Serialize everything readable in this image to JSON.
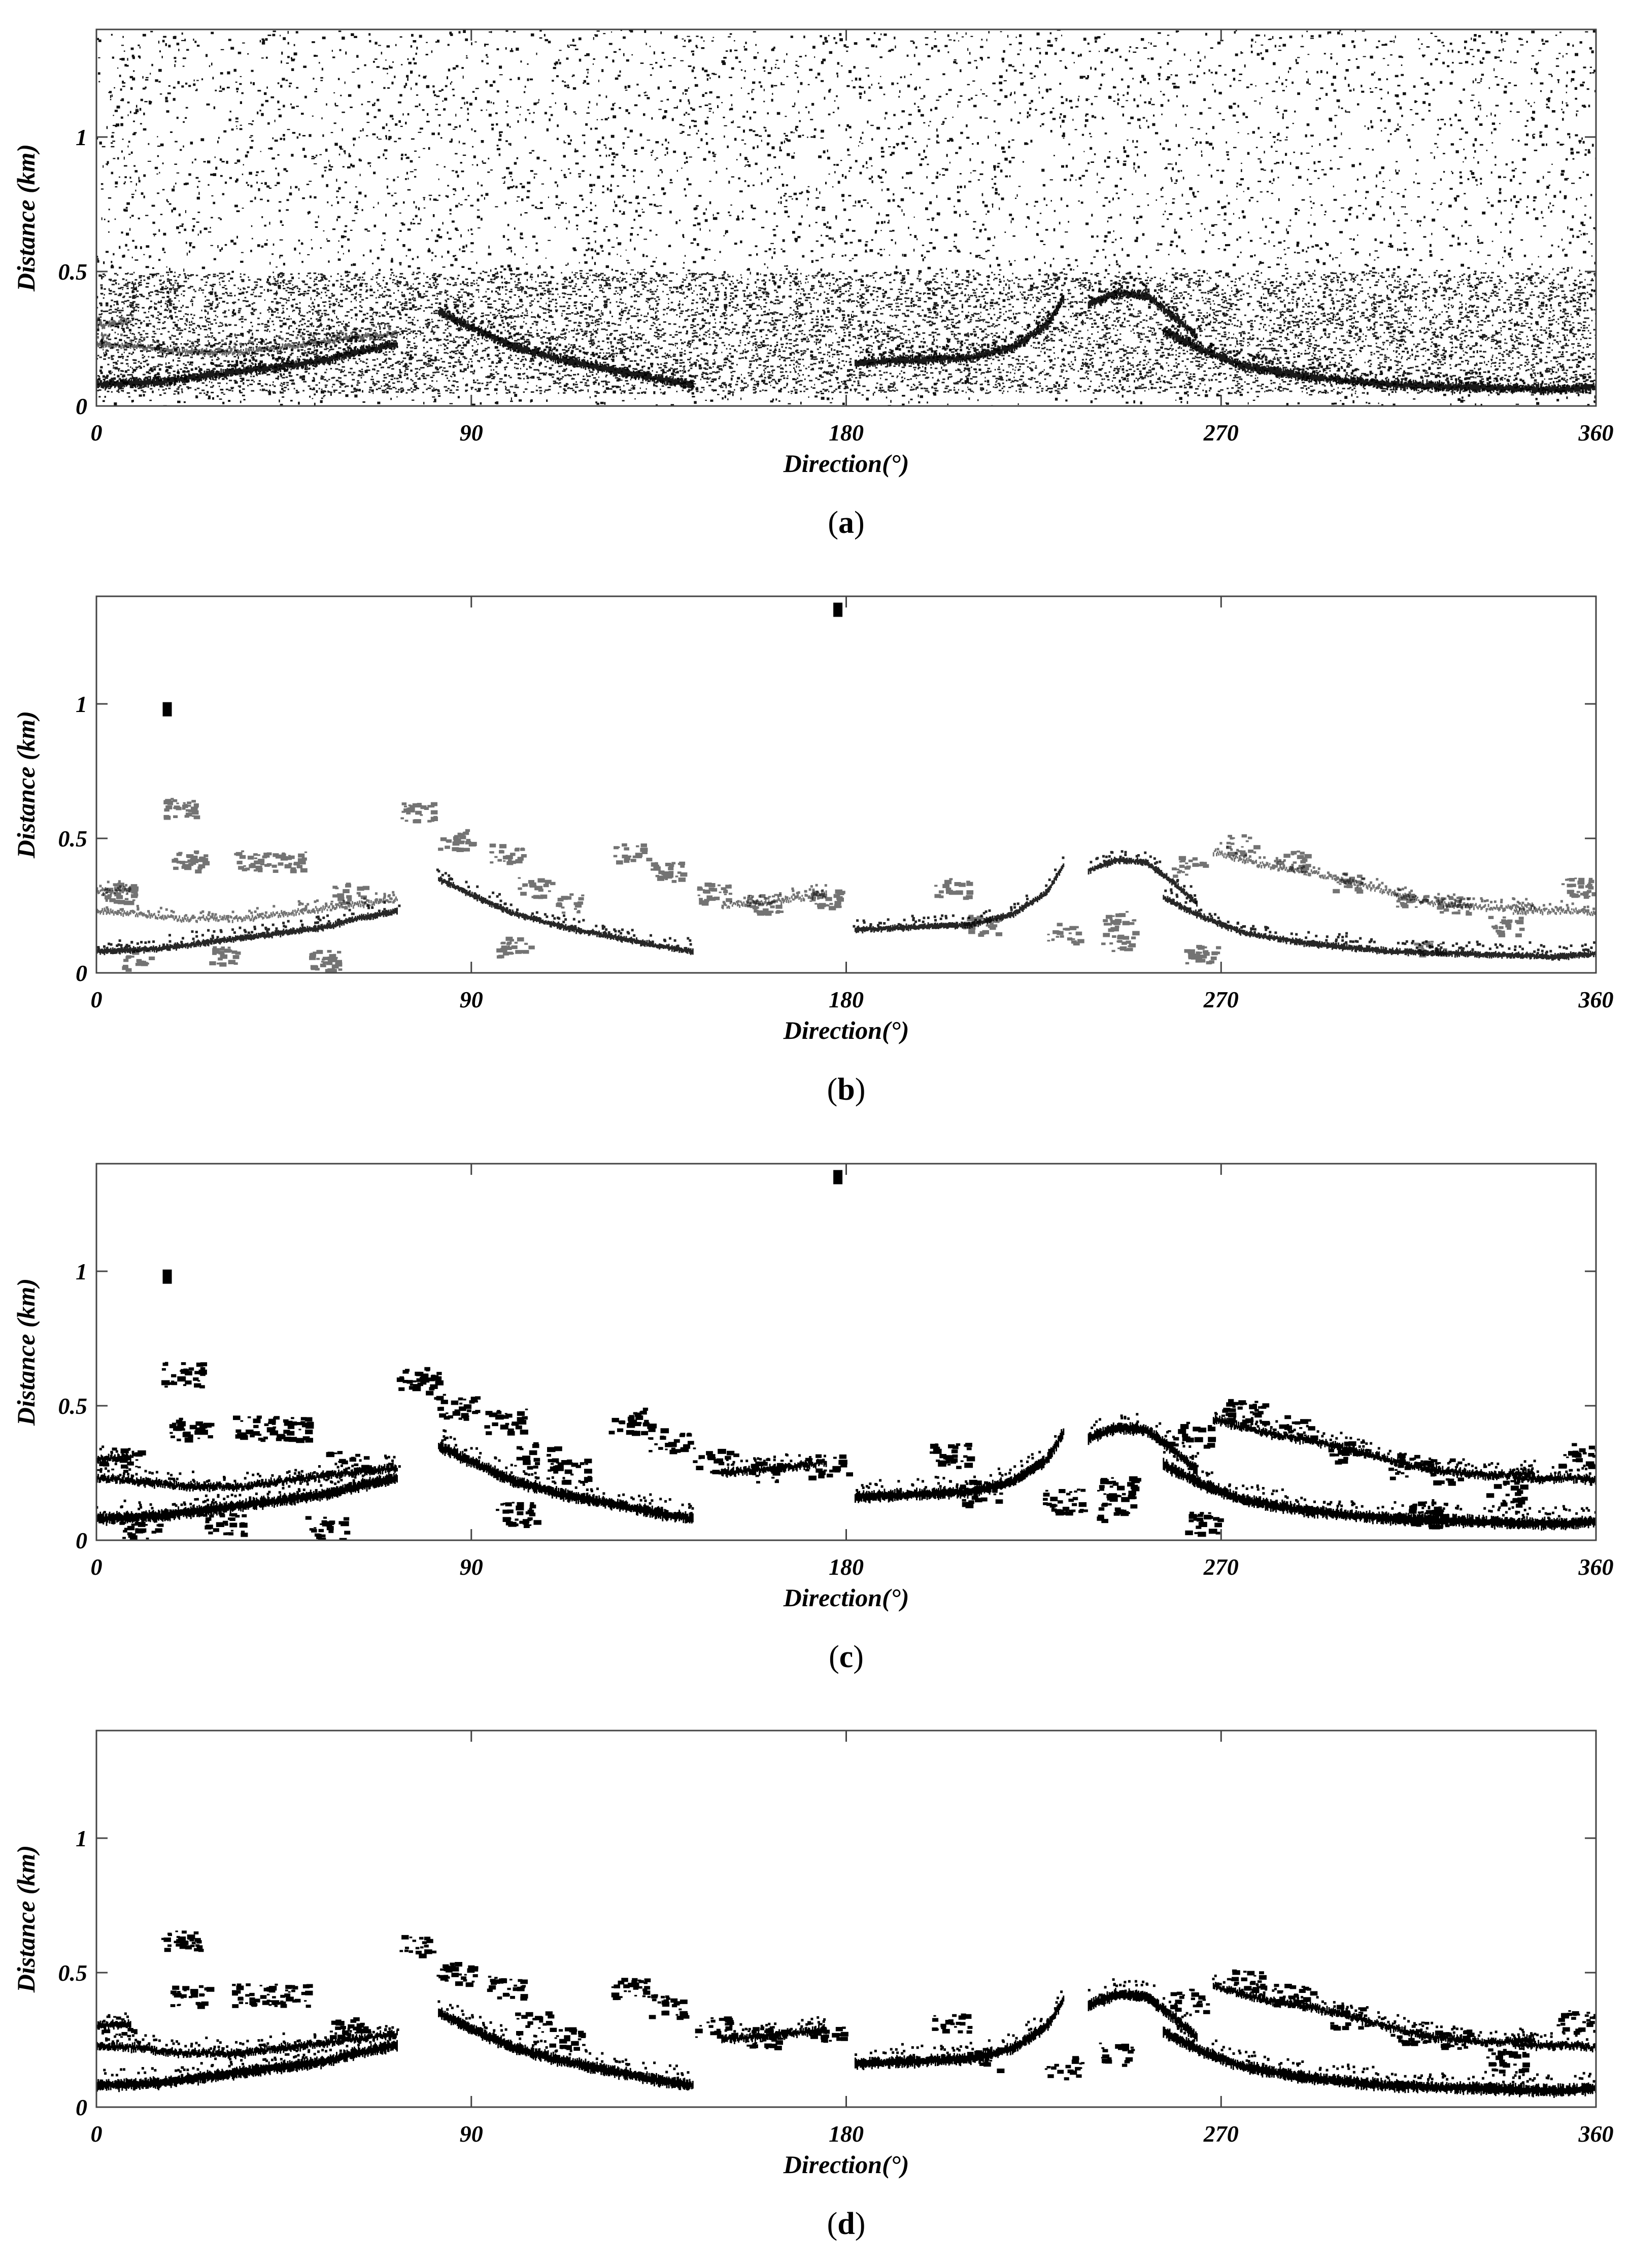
{
  "figure": {
    "panels": [
      {
        "id": "a",
        "label_open": "(",
        "label_letter": "a",
        "label_close": ")",
        "style": "raw-noise"
      },
      {
        "id": "b",
        "label_open": "(",
        "label_letter": "b",
        "label_close": ")",
        "style": "edge-outline"
      },
      {
        "id": "c",
        "label_open": "(",
        "label_letter": "c",
        "label_close": ")",
        "style": "filled-all"
      },
      {
        "id": "d",
        "label_open": "(",
        "label_letter": "d",
        "label_close": ")",
        "style": "filled-selected"
      }
    ]
  },
  "chart_data": [
    {
      "type": "scatter",
      "panel": "a",
      "xlabel": "Direction(°)",
      "ylabel": "Distance (km)",
      "xlim": [
        0,
        360
      ],
      "ylim": [
        0,
        1.4
      ],
      "xticks": [
        "0",
        "90",
        "180",
        "270",
        "360"
      ],
      "yticks": [
        "0",
        "0.5",
        "1"
      ],
      "grid": false,
      "description_of_marks": "dense speckle noise over the whole field with dark wave-crest bands near 0.1–0.5 km"
    },
    {
      "type": "scatter",
      "panel": "b",
      "xlabel": "Direction(°)",
      "ylabel": "Distance (km)",
      "xlim": [
        0,
        360
      ],
      "ylim": [
        0,
        1.4
      ],
      "xticks": [
        "0",
        "90",
        "180",
        "270",
        "360"
      ],
      "yticks": [
        "0",
        "0.5",
        "1"
      ],
      "grid": false,
      "isolated_points": [
        {
          "x": 178,
          "y": 1.35
        },
        {
          "x": 17,
          "y": 0.98
        }
      ]
    },
    {
      "type": "scatter",
      "panel": "c",
      "xlabel": "Direction(°)",
      "ylabel": "Distance (km)",
      "xlim": [
        0,
        360
      ],
      "ylim": [
        0,
        1.4
      ],
      "xticks": [
        "0",
        "90",
        "180",
        "270",
        "360"
      ],
      "yticks": [
        "0",
        "0.5",
        "1"
      ],
      "grid": false,
      "isolated_points": [
        {
          "x": 178,
          "y": 1.35
        },
        {
          "x": 17,
          "y": 0.98
        }
      ]
    },
    {
      "type": "scatter",
      "panel": "d",
      "xlabel": "Direction(°)",
      "ylabel": "Distance (km)",
      "xlim": [
        0,
        360
      ],
      "ylim": [
        0,
        1.4
      ],
      "xticks": [
        "0",
        "90",
        "180",
        "270",
        "360"
      ],
      "yticks": [
        "0",
        "0.5",
        "1"
      ],
      "grid": false
    }
  ],
  "bands": {
    "main": [
      [
        [
          0,
          0.08
        ],
        [
          15,
          0.09
        ],
        [
          25,
          0.11
        ],
        [
          40,
          0.14
        ],
        [
          55,
          0.17
        ],
        [
          62,
          0.2
        ],
        [
          72,
          0.23
        ]
      ],
      [
        [
          82,
          0.35
        ],
        [
          90,
          0.29
        ],
        [
          100,
          0.22
        ],
        [
          112,
          0.17
        ],
        [
          125,
          0.13
        ],
        [
          135,
          0.1
        ],
        [
          143,
          0.08
        ]
      ],
      [
        [
          182,
          0.16
        ],
        [
          195,
          0.17
        ],
        [
          210,
          0.18
        ],
        [
          220,
          0.22
        ],
        [
          228,
          0.3
        ],
        [
          232,
          0.4
        ]
      ],
      [
        [
          238,
          0.38
        ],
        [
          245,
          0.42
        ],
        [
          252,
          0.41
        ],
        [
          258,
          0.34
        ],
        [
          264,
          0.26
        ]
      ],
      [
        [
          256,
          0.28
        ],
        [
          265,
          0.21
        ],
        [
          275,
          0.15
        ],
        [
          290,
          0.11
        ],
        [
          310,
          0.08
        ],
        [
          330,
          0.07
        ],
        [
          350,
          0.06
        ],
        [
          360,
          0.07
        ]
      ]
    ],
    "secondary": [
      [
        [
          0,
          0.23
        ],
        [
          10,
          0.22
        ],
        [
          20,
          0.2
        ],
        [
          35,
          0.2
        ],
        [
          50,
          0.23
        ],
        [
          60,
          0.25
        ],
        [
          72,
          0.27
        ]
      ],
      [
        [
          0,
          0.3
        ],
        [
          8,
          0.31
        ]
      ],
      [
        [
          268,
          0.45
        ],
        [
          280,
          0.4
        ],
        [
          292,
          0.37
        ],
        [
          305,
          0.32
        ],
        [
          320,
          0.26
        ],
        [
          335,
          0.24
        ],
        [
          345,
          0.25
        ]
      ],
      [
        [
          150,
          0.25
        ],
        [
          165,
          0.27
        ],
        [
          175,
          0.29
        ]
      ],
      [
        [
          340,
          0.23
        ],
        [
          355,
          0.23
        ],
        [
          360,
          0.22
        ]
      ]
    ]
  }
}
